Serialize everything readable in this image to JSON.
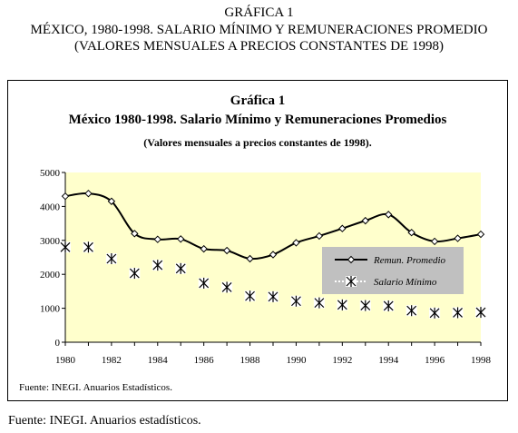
{
  "header": {
    "line1": "GRÁFICA 1",
    "line2": "MÉXICO, 1980-1998. SALARIO MÍNIMO Y REMUNERACIONES PROMEDIO",
    "line3": "(VALORES MENSUALES A PRECIOS CONSTANTES DE 1998)"
  },
  "footer": {
    "source": "Fuente: INEGI. Anuarios estadísticos."
  },
  "chart_data": {
    "type": "line",
    "title": "Gráfica 1",
    "subtitle": "México 1980-1998. Salario Mínimo y Remuneraciones Promedios",
    "subtitle2": "(Valores mensuales a precios constantes de 1998).",
    "x": [
      1980,
      1981,
      1982,
      1983,
      1984,
      1985,
      1986,
      1987,
      1988,
      1989,
      1990,
      1991,
      1992,
      1993,
      1994,
      1995,
      1996,
      1997,
      1998
    ],
    "x_ticks": [
      "1980",
      "1982",
      "1984",
      "1986",
      "1988",
      "1990",
      "1992",
      "1994",
      "1996",
      "1998"
    ],
    "y_ticks": [
      "0",
      "1000",
      "2000",
      "3000",
      "4000",
      "5000"
    ],
    "ylim": [
      0,
      5000
    ],
    "xlim": [
      1980,
      1998
    ],
    "series": [
      {
        "name": "Remun. Promedio",
        "style": "smooth line with diamond markers",
        "values": [
          4300,
          4380,
          4150,
          3200,
          3030,
          3040,
          2750,
          2700,
          2460,
          2580,
          2930,
          3130,
          3350,
          3580,
          3760,
          3230,
          2970,
          3060,
          3180
        ]
      },
      {
        "name": "Salario Mínimo",
        "style": "asterisk markers",
        "values": [
          2800,
          2800,
          2460,
          2030,
          2270,
          2170,
          1740,
          1620,
          1360,
          1340,
          1210,
          1160,
          1100,
          1080,
          1070,
          930,
          860,
          870,
          880
        ]
      }
    ],
    "legend_position": "inside-right",
    "source_note": "Fuente: INEGI. Anuarios Estadísticos.",
    "plot_background": "#ffffcc",
    "legend_background": "#c0c0c0",
    "grid": false
  }
}
